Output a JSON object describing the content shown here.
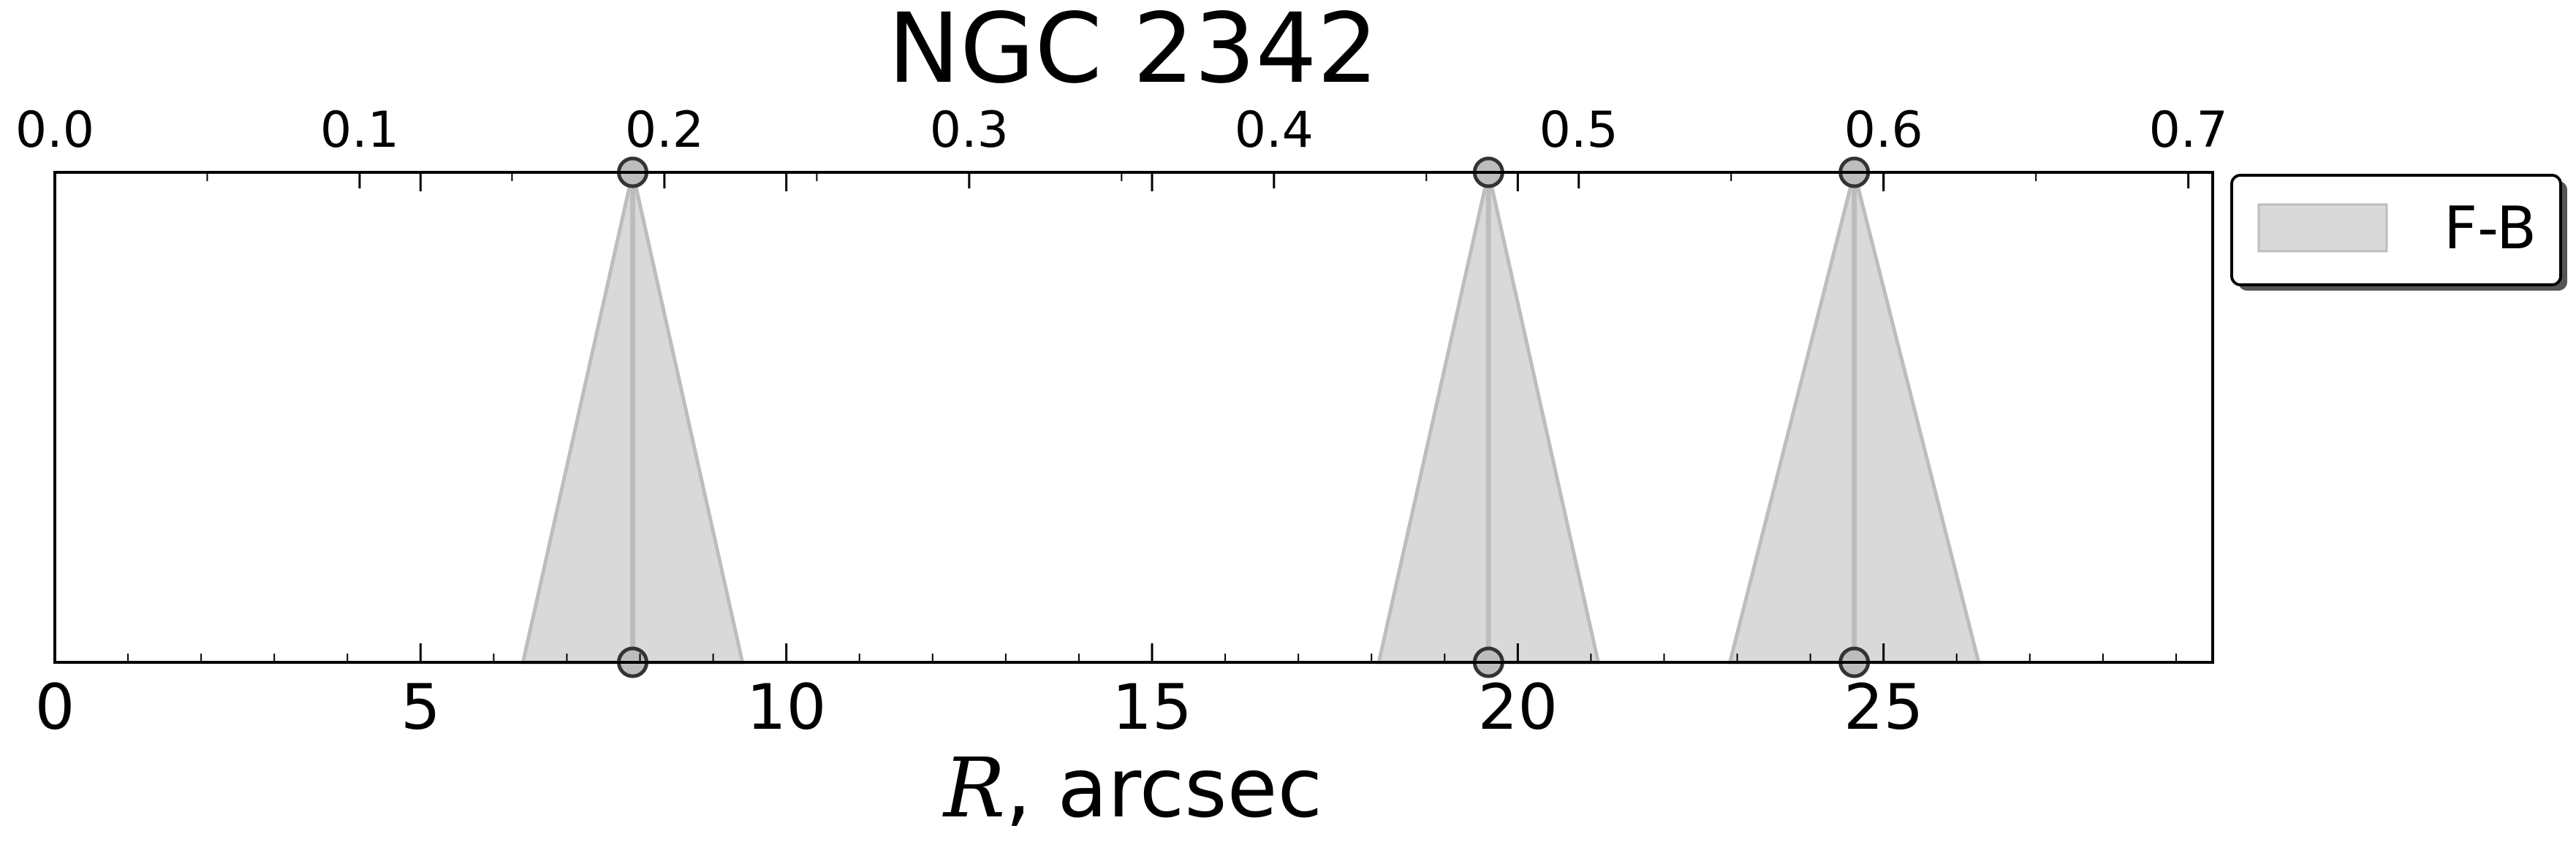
{
  "chart_data": {
    "type": "area",
    "title": "NGC 2342",
    "xlabel_symbol": "R",
    "xlabel_rest": ", arcsec",
    "bottom_axis": {
      "xlim": [
        0,
        29.5
      ],
      "ticks": [
        0,
        5,
        10,
        15,
        20,
        25
      ],
      "tick_labels": [
        "0",
        "5",
        "10",
        "15",
        "20",
        "25"
      ]
    },
    "top_axis": {
      "xlim": [
        0,
        0.708
      ],
      "ticks": [
        0.0,
        0.1,
        0.2,
        0.3,
        0.4,
        0.5,
        0.6,
        0.7
      ],
      "tick_labels": [
        "0.0",
        "0.1",
        "0.2",
        "0.3",
        "0.4",
        "0.5",
        "0.6",
        "0.7"
      ]
    },
    "ylim": [
      0,
      1
    ],
    "grid": false,
    "legend": {
      "placement": "outside-top-right",
      "entries": [
        "F-B"
      ]
    },
    "series": [
      {
        "name": "F-B",
        "color": "#d9d9d9",
        "line_color": "#bdbdbd",
        "features": [
          {
            "center": 7.9,
            "left": 6.4,
            "right": 9.4
          },
          {
            "center": 19.6,
            "left": 18.1,
            "right": 21.1
          },
          {
            "center": 24.6,
            "left": 22.9,
            "right": 26.3
          }
        ]
      }
    ]
  }
}
